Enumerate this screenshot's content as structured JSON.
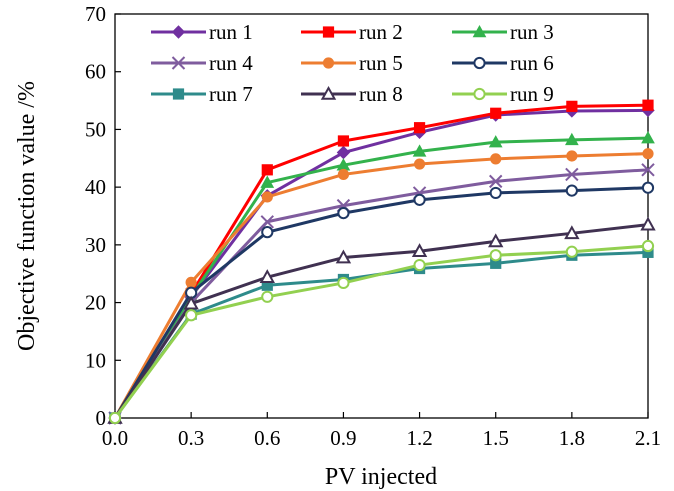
{
  "chart_data": {
    "type": "line",
    "title": "",
    "xlabel": "PV injected",
    "ylabel": "Objective function value /%",
    "x": [
      0.0,
      0.3,
      0.6,
      0.9,
      1.2,
      1.5,
      1.8,
      2.1
    ],
    "x_tick_labels": [
      "0.0",
      "0.3",
      "0.6",
      "0.9",
      "1.2",
      "1.5",
      "1.8",
      "2.1"
    ],
    "xlim": [
      0.0,
      2.1
    ],
    "ylim": [
      0,
      70
    ],
    "y_ticks": [
      0,
      10,
      20,
      30,
      40,
      50,
      60,
      70
    ],
    "grid": false,
    "legend_position": "top",
    "series": [
      {
        "name": "run 1",
        "color": "#7030A0",
        "marker": "diamond",
        "values": [
          0,
          21,
          38.5,
          46,
          49.5,
          52.5,
          53.2,
          53.3
        ]
      },
      {
        "name": "run 2",
        "color": "#FF0000",
        "marker": "square",
        "values": [
          0,
          21.5,
          43,
          48,
          50.3,
          52.8,
          54,
          54.2
        ]
      },
      {
        "name": "run 3",
        "color": "#33B24C",
        "marker": "triangle",
        "values": [
          0,
          21,
          40.8,
          43.8,
          46.2,
          47.8,
          48.2,
          48.5
        ]
      },
      {
        "name": "run 4",
        "color": "#7F5C9E",
        "marker": "x",
        "values": [
          0,
          20,
          34,
          36.8,
          39,
          41,
          42.2,
          43
        ]
      },
      {
        "name": "run 5",
        "color": "#ED7D31",
        "marker": "circle-filled",
        "values": [
          0,
          23.5,
          38.3,
          42.2,
          44,
          44.9,
          45.4,
          45.8
        ]
      },
      {
        "name": "run 6",
        "color": "#1F3864",
        "marker": "circle-open",
        "values": [
          0,
          21.7,
          32.2,
          35.5,
          37.8,
          39,
          39.4,
          39.9
        ]
      },
      {
        "name": "run 7",
        "color": "#2E8B8B",
        "marker": "square",
        "values": [
          0,
          18,
          23,
          24,
          25.9,
          26.8,
          28.2,
          28.7
        ]
      },
      {
        "name": "run 8",
        "color": "#403151",
        "marker": "triangle-open",
        "values": [
          0,
          19.8,
          24.4,
          27.8,
          28.9,
          30.6,
          32,
          33.5
        ]
      },
      {
        "name": "run 9",
        "color": "#92D050",
        "marker": "circle-open",
        "values": [
          0,
          17.8,
          21,
          23.4,
          26.5,
          28.2,
          28.8,
          29.8
        ]
      }
    ]
  }
}
